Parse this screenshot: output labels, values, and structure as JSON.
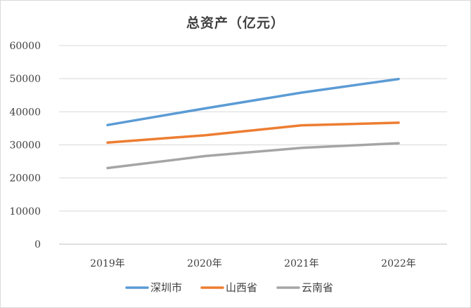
{
  "chart_data": {
    "type": "line",
    "title": "总资产（亿元）",
    "categories": [
      "2019年",
      "2020年",
      "2021年",
      "2022年"
    ],
    "series": [
      {
        "name": "深圳市",
        "color": "#5B9BD5",
        "values": [
          36000,
          41000,
          45800,
          49900
        ]
      },
      {
        "name": "山西省",
        "color": "#ED7D31",
        "values": [
          30700,
          32900,
          35900,
          36700
        ]
      },
      {
        "name": "云南省",
        "color": "#A5A5A5",
        "values": [
          23000,
          26600,
          29100,
          30500
        ]
      }
    ],
    "ylim": [
      0,
      60000
    ],
    "yticks": [
      0,
      10000,
      20000,
      30000,
      40000,
      50000,
      60000
    ],
    "grid": true,
    "legend": "bottom"
  }
}
